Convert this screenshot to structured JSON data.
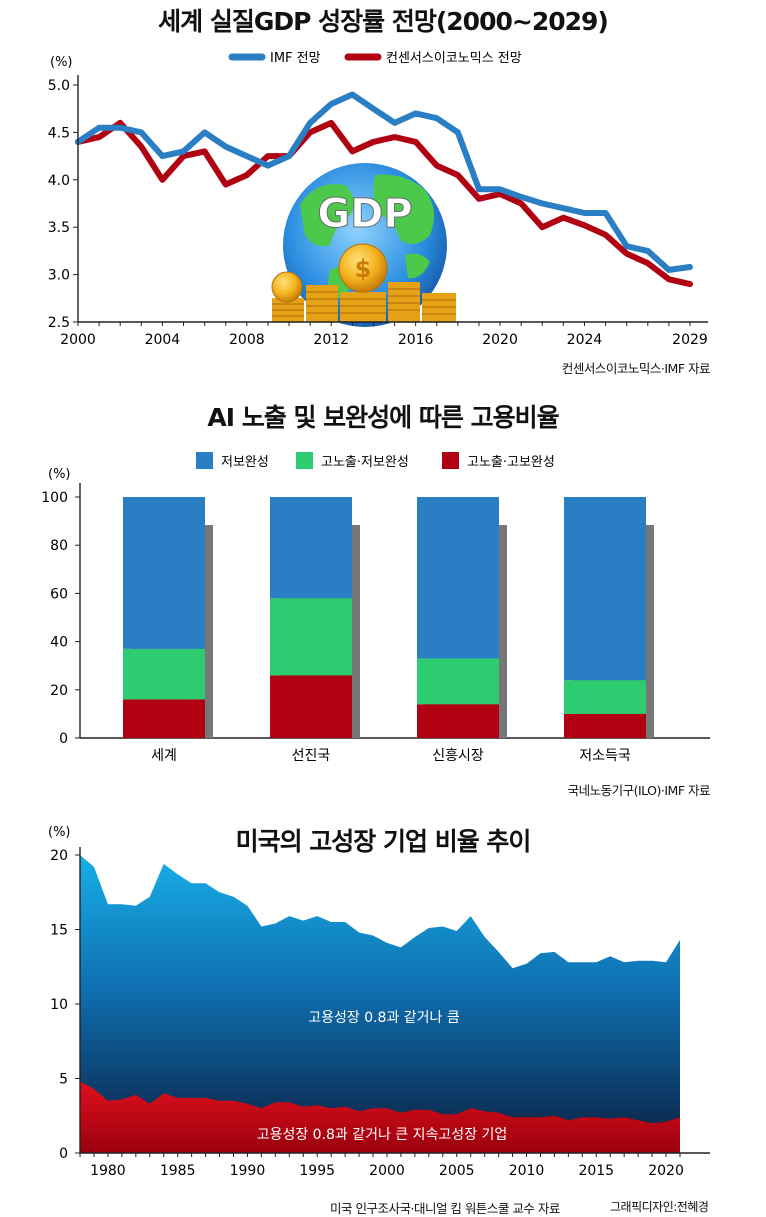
{
  "chart_data": [
    {
      "type": "line",
      "title": "세계 실질GDP 성장률 전망(2000~2029)",
      "ylabel": "(%)",
      "xlabel": "",
      "ylim": [
        2.5,
        5.0
      ],
      "xlim": [
        2000,
        2029
      ],
      "y_ticks": [
        "5.0",
        "4.5",
        "4.0",
        "3.5",
        "3.0",
        "2.5"
      ],
      "x_ticks": [
        "2000",
        "2004",
        "2008",
        "2012",
        "2016",
        "2020",
        "2024",
        "2029"
      ],
      "x": [
        2000,
        2001,
        2002,
        2003,
        2004,
        2005,
        2006,
        2007,
        2008,
        2009,
        2010,
        2011,
        2012,
        2013,
        2014,
        2015,
        2016,
        2017,
        2018,
        2019,
        2020,
        2021,
        2022,
        2023,
        2024,
        2025,
        2026,
        2027,
        2028,
        2029
      ],
      "series": [
        {
          "name": "IMF 전망",
          "color": "#2a7fc4",
          "values": [
            4.4,
            4.55,
            4.55,
            4.5,
            4.25,
            4.3,
            4.5,
            4.35,
            4.25,
            4.15,
            4.25,
            4.6,
            4.8,
            4.9,
            4.75,
            4.6,
            4.7,
            4.65,
            4.5,
            3.9,
            3.9,
            3.82,
            3.75,
            3.7,
            3.65,
            3.65,
            3.3,
            3.25,
            3.05,
            3.08
          ]
        },
        {
          "name": "컨센서스이코노믹스 전망",
          "color": "#b00012",
          "values": [
            4.4,
            4.45,
            4.6,
            4.35,
            4.0,
            4.25,
            4.3,
            3.95,
            4.05,
            4.25,
            4.25,
            4.5,
            4.6,
            4.3,
            4.4,
            4.45,
            4.4,
            4.15,
            4.05,
            3.8,
            3.85,
            3.75,
            3.5,
            3.6,
            3.52,
            3.42,
            3.22,
            3.12,
            2.95,
            2.9
          ]
        }
      ],
      "illustration_text": "GDP",
      "source": "컨센서스이코노믹스·IMF 자료"
    },
    {
      "type": "bar",
      "stacked": true,
      "title": "AI 노출 및 보완성에 따른 고용비율",
      "ylabel": "(%)",
      "ylim": [
        0,
        100
      ],
      "y_ticks": [
        "100",
        "80",
        "60",
        "40",
        "20",
        "0"
      ],
      "categories": [
        "세계",
        "선진국",
        "신흥시장",
        "저소득국"
      ],
      "series": [
        {
          "name": "고노출·고보완성",
          "color": "#b00012",
          "values": [
            16,
            26,
            14,
            10
          ]
        },
        {
          "name": "고노출·저보완성",
          "color": "#2ecc71",
          "values": [
            21,
            32,
            19,
            14
          ]
        },
        {
          "name": "저보완성",
          "color": "#2a7fc4",
          "values": [
            63,
            42,
            67,
            76
          ]
        }
      ],
      "legend_order": [
        "저보완성",
        "고노출·저보완성",
        "고노출·고보완성"
      ],
      "source": "국네노동기구(ILO)·IMF 자료"
    },
    {
      "type": "area",
      "title": "미국의 고성장 기업 비율 추이",
      "ylabel": "(%)",
      "ylim": [
        0,
        20
      ],
      "xlim": [
        1978,
        2021
      ],
      "y_ticks": [
        "20",
        "15",
        "10",
        "5",
        "0"
      ],
      "x_ticks": [
        "1980",
        "1985",
        "1990",
        "1995",
        "2000",
        "2005",
        "2010",
        "2015",
        "2020"
      ],
      "x": [
        1978,
        1979,
        1980,
        1981,
        1982,
        1983,
        1984,
        1985,
        1986,
        1987,
        1988,
        1989,
        1990,
        1991,
        1992,
        1993,
        1994,
        1995,
        1996,
        1997,
        1998,
        1999,
        2000,
        2001,
        2002,
        2003,
        2004,
        2005,
        2006,
        2007,
        2008,
        2009,
        2010,
        2011,
        2012,
        2013,
        2014,
        2015,
        2016,
        2017,
        2018,
        2019,
        2020,
        2021
      ],
      "series": [
        {
          "name": "고용성장 0.8과 같거나 큼",
          "color": "#0f5aa0",
          "values": [
            20.0,
            19.2,
            16.7,
            16.7,
            16.6,
            17.2,
            19.4,
            18.7,
            18.1,
            18.1,
            17.5,
            17.2,
            16.6,
            15.2,
            15.4,
            15.9,
            15.6,
            15.9,
            15.5,
            15.5,
            14.8,
            14.6,
            14.1,
            13.8,
            14.5,
            15.1,
            15.2,
            14.9,
            15.9,
            14.5,
            13.5,
            12.4,
            12.7,
            13.4,
            13.5,
            12.8,
            12.8,
            12.8,
            13.2,
            12.8,
            12.9,
            12.9,
            12.8,
            14.3
          ]
        },
        {
          "name": "고용성장 0.8과 같거나 큰 지속고성장 기업",
          "color": "#b00012",
          "values": [
            4.8,
            4.3,
            3.5,
            3.6,
            3.9,
            3.3,
            4.0,
            3.7,
            3.7,
            3.7,
            3.5,
            3.5,
            3.3,
            3.0,
            3.4,
            3.4,
            3.1,
            3.2,
            3.0,
            3.1,
            2.8,
            3.0,
            3.0,
            2.7,
            2.9,
            2.9,
            2.6,
            2.6,
            3.0,
            2.8,
            2.7,
            2.4,
            2.4,
            2.4,
            2.5,
            2.2,
            2.4,
            2.4,
            2.3,
            2.4,
            2.2,
            2.0,
            2.1,
            2.4
          ]
        }
      ],
      "labels": [
        "고용성장 0.8과 같거나 큼",
        "고용성장 0.8과 같거나 큰 지속고성장 기업"
      ],
      "source": "미국 인구조사국·대니얼 킴 워튼스쿨 교수 자료",
      "credit": "그래픽디자인:전혜경"
    }
  ]
}
